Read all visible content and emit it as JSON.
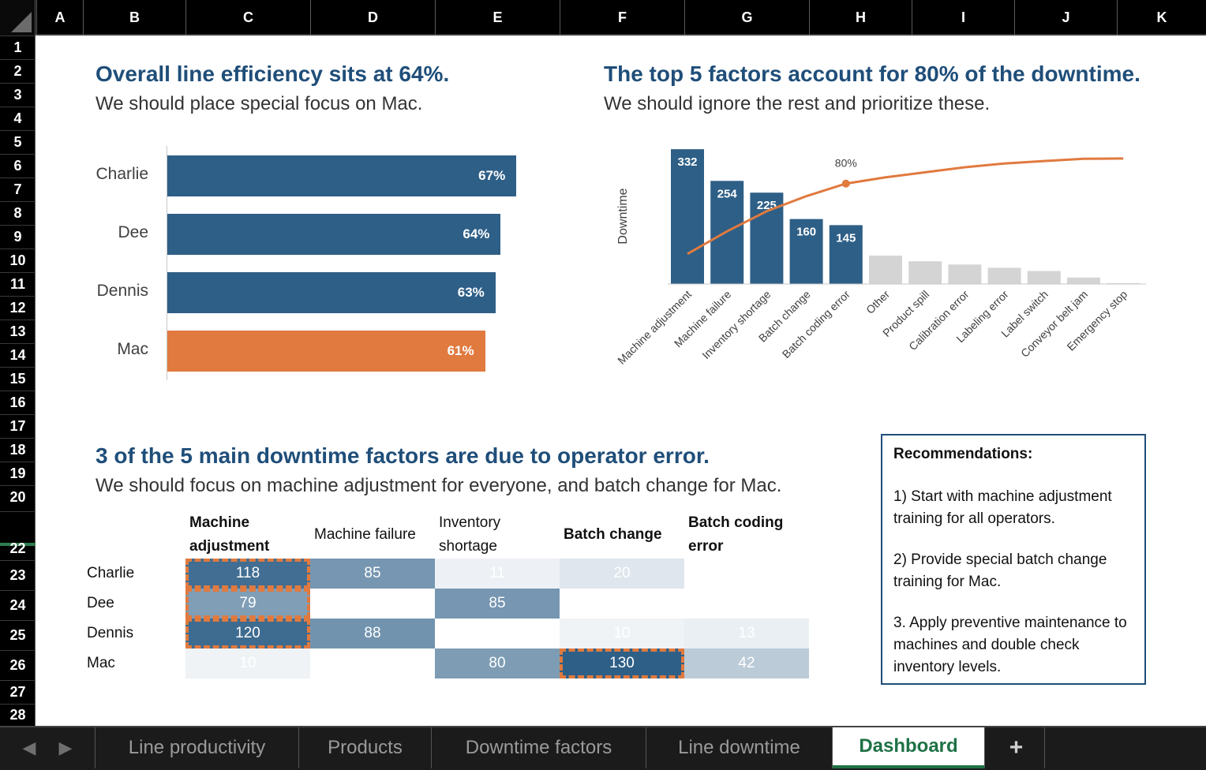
{
  "columns": [
    "A",
    "B",
    "C",
    "D",
    "E",
    "F",
    "G",
    "H",
    "I",
    "J",
    "K"
  ],
  "rows": [
    "1",
    "2",
    "3",
    "4",
    "5",
    "6",
    "7",
    "8",
    "9",
    "10",
    "11",
    "12",
    "13",
    "14",
    "15",
    "16",
    "17",
    "18",
    "19",
    "20",
    "22",
    "23",
    "24",
    "25",
    "26",
    "27",
    "28"
  ],
  "efficiency": {
    "title": "Overall line efficiency sits at 64%.",
    "subtitle": "We should place special focus on Mac.",
    "chart_data": {
      "type": "bar",
      "orientation": "horizontal",
      "categories": [
        "Charlie",
        "Dee",
        "Dennis",
        "Mac"
      ],
      "values": [
        67,
        64,
        63,
        61
      ],
      "value_labels": [
        "67%",
        "64%",
        "63%",
        "61%"
      ],
      "colors": [
        "#2e5f87",
        "#2e5f87",
        "#2e5f87",
        "#e07a3f"
      ],
      "xlim": [
        0,
        100
      ]
    }
  },
  "pareto": {
    "title": "The top 5 factors account for 80% of the downtime.",
    "subtitle": "We should ignore the rest and prioritize these.",
    "chart_data": {
      "type": "bar",
      "ylabel": "Downtime",
      "categories": [
        "Machine adjustment",
        "Machine failure",
        "Inventory shortage",
        "Batch change",
        "Batch coding error",
        "Other",
        "Product spill",
        "Calibration error",
        "Labeling error",
        "Label switch",
        "Conveyor belt jam",
        "Emergency stop"
      ],
      "values": [
        332,
        254,
        225,
        160,
        145,
        70,
        56,
        48,
        40,
        32,
        16,
        2
      ],
      "value_labels": [
        "332",
        "254",
        "225",
        "160",
        "145",
        "",
        "",
        "",
        "",
        "",
        "",
        ""
      ],
      "highlight_count": 5,
      "ylim": [
        0,
        340
      ],
      "cumulative_line": {
        "values": [
          24,
          42,
          58,
          70,
          80,
          85,
          89,
          93,
          96,
          98,
          99.8,
          100
        ],
        "annotation": "80%",
        "annotated_index": 4,
        "ylim": [
          0,
          110
        ]
      },
      "colors": {
        "highlight": "#2e5f87",
        "rest": "#d4d4d4",
        "line": "#e07a3f"
      }
    }
  },
  "heatmap": {
    "title": "3 of the 5 main downtime factors are due to operator error.",
    "subtitle": "We should focus on machine adjustment for everyone, and batch change for Mac.",
    "columns": [
      {
        "line1": "Machine",
        "line2": "adjustment",
        "bold": true
      },
      {
        "line1": "Machine failure",
        "line2": "",
        "bold": false
      },
      {
        "line1": "Inventory",
        "line2": "shortage",
        "bold": false
      },
      {
        "line1": "Batch change",
        "line2": "",
        "bold": true
      },
      {
        "line1": "Batch coding",
        "line2": "error",
        "bold": true
      }
    ],
    "rows": [
      "Charlie",
      "Dee",
      "Dennis",
      "Mac"
    ],
    "chart_data": {
      "type": "heatmap",
      "values": [
        [
          118,
          85,
          11,
          20,
          0
        ],
        [
          79,
          0,
          85,
          0,
          0
        ],
        [
          120,
          88,
          0,
          10,
          13
        ],
        [
          10,
          0,
          80,
          130,
          42
        ]
      ],
      "display": [
        [
          "118",
          "85",
          "11",
          "20",
          ""
        ],
        [
          "79",
          "",
          "85",
          "",
          ""
        ],
        [
          "120",
          "88",
          "",
          "10",
          "13"
        ],
        [
          "10",
          "",
          "80",
          "130",
          "42"
        ]
      ],
      "highlighted_cells": [
        [
          0,
          0
        ],
        [
          1,
          0
        ],
        [
          2,
          0
        ],
        [
          3,
          3
        ]
      ]
    }
  },
  "recommendations": {
    "title": "Recommendations:",
    "items": [
      "1) Start with machine adjustment training for all operators.",
      "2) Provide special batch change training for Mac.",
      "3. Apply preventive maintenance to machines and double check inventory levels."
    ]
  },
  "sheet_tabs": {
    "prev_icon": "◀",
    "next_icon": "▶",
    "tabs": [
      "Line productivity",
      "Products",
      "Downtime factors",
      "Line downtime",
      "Dashboard"
    ],
    "active": "Dashboard",
    "add_label": "+"
  }
}
